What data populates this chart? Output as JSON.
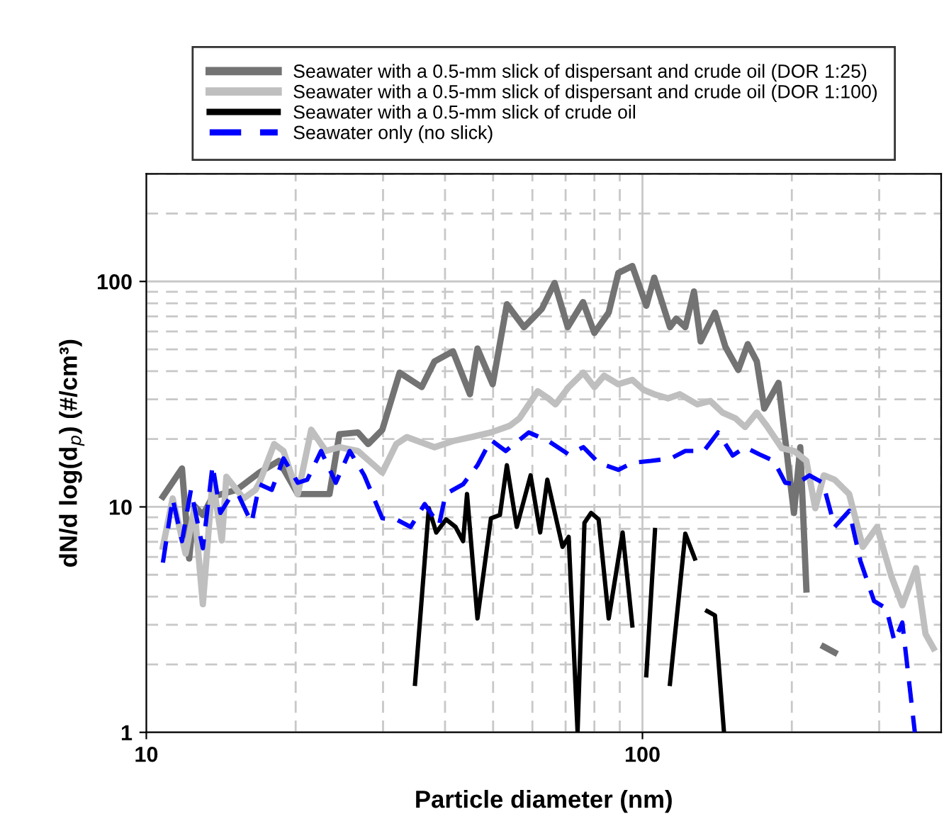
{
  "chart_data": {
    "type": "line",
    "xlabel": "Particle diameter (nm)",
    "ylabel": "dN/d log(d$_{p}$) (#/cm³)",
    "log": "xy",
    "xlim": [
      10,
      400
    ],
    "ylim": [
      1,
      300
    ],
    "xticks": [
      10,
      100
    ],
    "yticks": [
      1,
      10,
      100
    ],
    "grid": true,
    "legend": "top",
    "line_style": "solid",
    "marker": "none",
    "series": [
      {
        "name": "Seawater with a 0.5-mm slick of dispersant and crude oil (DOR 1:25)",
        "color": "#737373",
        "x": [
          10.8,
          11.8,
          12.2,
          12.5,
          13.0,
          13.6,
          15.2,
          16.9,
          18.5,
          20.2,
          23.4,
          24.5,
          26.7,
          28.0,
          29.9,
          32.4,
          35.9,
          38.1,
          41.5,
          44.9,
          46.5,
          49.9,
          53.3,
          57.7,
          62.7,
          66.5,
          70.7,
          75.9,
          80,
          85.5,
          89.4,
          95.4,
          101.8,
          105.6,
          113.6,
          117,
          122,
          127,
          131,
          140,
          147,
          156,
          163,
          170,
          176,
          188,
          202,
          208,
          214,
          223,
          232,
          244
        ],
        "values": [
          11.1,
          14.8,
          5.9,
          10.1,
          9.2,
          11.1,
          11.9,
          14.2,
          16.0,
          11.4,
          11.4,
          21.0,
          21.4,
          19.0,
          22.0,
          39.4,
          34.0,
          44.2,
          49.0,
          31.6,
          50.4,
          35.0,
          79.2,
          62.7,
          75.6,
          98.5,
          62.7,
          81,
          59.1,
          72.8,
          109,
          117,
          78,
          104,
          62.7,
          68.4,
          62.7,
          90.3,
          54.2,
          72.8,
          51.2,
          40.5,
          52.7,
          44.2,
          27.3,
          35.5,
          9.4,
          18.4,
          4.3,
          null,
          2.4,
          2.26
        ]
      },
      {
        "name": "Seawater with a 0.5-mm slick of dispersant and crude oil (DOR 1:100)",
        "color": "#bfbfbf",
        "x": [
          10.8,
          11.3,
          12.0,
          12.5,
          13.0,
          13.6,
          14.2,
          14.5,
          15.7,
          16.6,
          16.9,
          18.1,
          18.9,
          20.2,
          21.5,
          23.0,
          24.5,
          26.7,
          29.9,
          31.9,
          33.5,
          38.1,
          41.5,
          45.2,
          49.5,
          54.0,
          56.5,
          61.5,
          64.6,
          66.8,
          71.0,
          76,
          80,
          83.7,
          89.4,
          95.4,
          100.6,
          105.6,
          112.6,
          119,
          129,
          137,
          145,
          154,
          161,
          170,
          178,
          191,
          202,
          214,
          223,
          232,
          244,
          261,
          278,
          297,
          317,
          334,
          356,
          372,
          386
        ],
        "values": [
          6.65,
          10.9,
          6.2,
          9.86,
          3.7,
          13.2,
          7.1,
          13.6,
          10.9,
          11.9,
          12.8,
          19.0,
          17.7,
          11.4,
          22.0,
          17.7,
          18.4,
          17.7,
          14.2,
          19.0,
          20.4,
          18.4,
          19.6,
          20.4,
          21.4,
          22.9,
          24.7,
          32.6,
          30.3,
          28.5,
          34.0,
          39.4,
          34.0,
          38.2,
          35.0,
          36.6,
          33.0,
          31.6,
          30.3,
          31.6,
          28.5,
          29.5,
          26.2,
          24.7,
          22.6,
          26.2,
          22.9,
          18.2,
          17.7,
          16.0,
          9.86,
          13.8,
          13.2,
          11.4,
          6.65,
          8.15,
          4.97,
          3.66,
          5.35,
          2.73,
          2.36
        ]
      },
      {
        "name": "Seawater with a 0.5-mm slick of crude oil",
        "color": "#000000",
        "x": [
          34.8,
          37.1,
          38.4,
          40.2,
          42.0,
          43.5,
          44.3,
          46.5,
          49.5,
          51.6,
          53.3,
          55.8,
          59.5,
          62.2,
          64.3,
          69.0,
          71.0,
          74.0,
          76.4,
          78.8,
          81.6,
          85.5,
          91.2,
          95.4,
          98,
          101.8,
          106,
          110,
          113.6,
          122,
          127.5,
          131,
          135,
          140,
          146
        ],
        "values": [
          1.64,
          9.86,
          7.7,
          8.8,
          8.15,
          7.05,
          11.4,
          3.2,
          8.9,
          9.2,
          15.3,
          8.15,
          13.8,
          7.7,
          13.2,
          6.65,
          7.36,
          1.0,
          8.5,
          9.4,
          8.8,
          3.2,
          7.7,
          2.98,
          null,
          1.79,
          7.9,
          null,
          1.64,
          7.6,
          5.9,
          null,
          3.45,
          3.3,
          1.0
        ]
      },
      {
        "name": "Seawater only (no slick)",
        "color": "#0000ff",
        "line_style": "dashed",
        "x": [
          10.8,
          11.3,
          11.8,
          12.3,
          13.0,
          13.6,
          14.1,
          14.7,
          15.3,
          16.3,
          16.9,
          17.9,
          18.9,
          20.2,
          21.1,
          22.5,
          24.1,
          25.7,
          27.5,
          29.9,
          31.9,
          34.1,
          36.4,
          38.9,
          40.1,
          43.5,
          46.5,
          49.5,
          53.0,
          59.0,
          64.6,
          71.0,
          76,
          81.6,
          89.4,
          95.4,
          104,
          114,
          122,
          133,
          142,
          152,
          161,
          172,
          184,
          194,
          204,
          217,
          231,
          244,
          261,
          275,
          293,
          310,
          322,
          334,
          354
        ],
        "values": [
          5.66,
          10.9,
          7.05,
          11.9,
          6.55,
          15.3,
          9.4,
          10.9,
          11.4,
          8.5,
          12.6,
          11.9,
          16.4,
          12.8,
          13.2,
          17.7,
          12.8,
          17.7,
          13.8,
          8.9,
          8.8,
          8.15,
          10.3,
          8.3,
          11.4,
          12.6,
          15.3,
          19.8,
          17.7,
          21.4,
          19.6,
          17.1,
          18.4,
          15.7,
          14.6,
          15.7,
          16.0,
          16.4,
          17.7,
          17.7,
          21.4,
          16.9,
          18.4,
          17.1,
          16.0,
          12.8,
          12.6,
          13.8,
          12.8,
          8.15,
          9.6,
          5.75,
          3.82,
          3.55,
          2.54,
          3.07,
          1.0
        ]
      }
    ]
  }
}
